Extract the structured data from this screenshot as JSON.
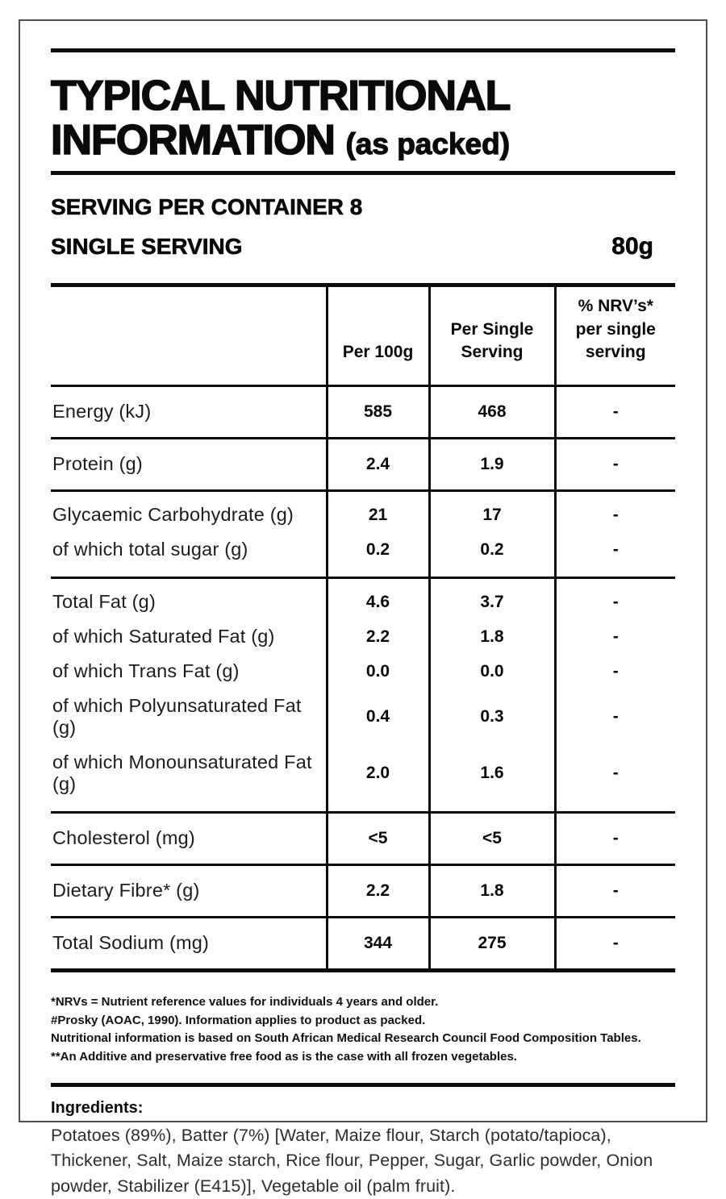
{
  "header": {
    "title_line1": "TYPICAL NUTRITIONAL",
    "title_line2": "INFORMATION",
    "title_suffix": "(as packed)",
    "servings_per_container": "SERVING PER CONTAINER 8",
    "single_serving_label": "SINGLE SERVING",
    "single_serving_size": "80g"
  },
  "table": {
    "columns": [
      "Per 100g",
      "Per Single Serving",
      "% NRV’s* per single serving"
    ],
    "groups": [
      {
        "rows": [
          {
            "label": "Energy (kJ)",
            "per_100g": "585",
            "per_serving": "468",
            "nrv": "-"
          }
        ]
      },
      {
        "rows": [
          {
            "label": "Protein (g)",
            "per_100g": "2.4",
            "per_serving": "1.9",
            "nrv": "-"
          }
        ]
      },
      {
        "rows": [
          {
            "label": "Glycaemic Carbohydrate (g)",
            "per_100g": "21",
            "per_serving": "17",
            "nrv": "-"
          },
          {
            "label": "of which total sugar (g)",
            "per_100g": "0.2",
            "per_serving": "0.2",
            "nrv": "-"
          }
        ]
      },
      {
        "rows": [
          {
            "label": "Total Fat (g)",
            "per_100g": "4.6",
            "per_serving": "3.7",
            "nrv": "-"
          },
          {
            "label": "of which Saturated Fat (g)",
            "per_100g": "2.2",
            "per_serving": "1.8",
            "nrv": "-"
          },
          {
            "label": "of which Trans Fat (g)",
            "per_100g": "0.0",
            "per_serving": "0.0",
            "nrv": "-"
          },
          {
            "label": "of which Polyunsaturated Fat (g)",
            "per_100g": "0.4",
            "per_serving": "0.3",
            "nrv": "-"
          },
          {
            "label": "of which Monounsaturated Fat (g)",
            "per_100g": "2.0",
            "per_serving": "1.6",
            "nrv": "-"
          }
        ]
      },
      {
        "rows": [
          {
            "label": "Cholesterol (mg)",
            "per_100g": "<5",
            "per_serving": "<5",
            "nrv": "-"
          }
        ]
      },
      {
        "rows": [
          {
            "label": "Dietary Fibre* (g)",
            "per_100g": "2.2",
            "per_serving": "1.8",
            "nrv": "-"
          }
        ]
      },
      {
        "rows": [
          {
            "label": "Total Sodium (mg)",
            "per_100g": "344",
            "per_serving": "275",
            "nrv": "-"
          }
        ]
      }
    ]
  },
  "footnotes": [
    "*NRVs = Nutrient reference values for individuals 4 years and older.",
    "#Prosky (AOAC, 1990). Information applies to product as packed.",
    "Nutritional information is based on South African Medical Research Council Food Composition Tables.",
    "**An Additive and preservative free food as is the case with all frozen vegetables."
  ],
  "ingredients": {
    "heading": "Ingredients:",
    "text": "Potatoes (89%), Batter (7%) [Water, Maize flour, Starch (potato/tapioca), Thickener, Salt, Maize starch, Rice flour, Pepper, Sugar, Garlic powder, Onion powder, Stabilizer (E415)], Vegetable oil (palm fruit)."
  },
  "colors": {
    "ink": "#0a0a0a",
    "frame_border": "#4f4f4f",
    "background": "#ffffff"
  }
}
